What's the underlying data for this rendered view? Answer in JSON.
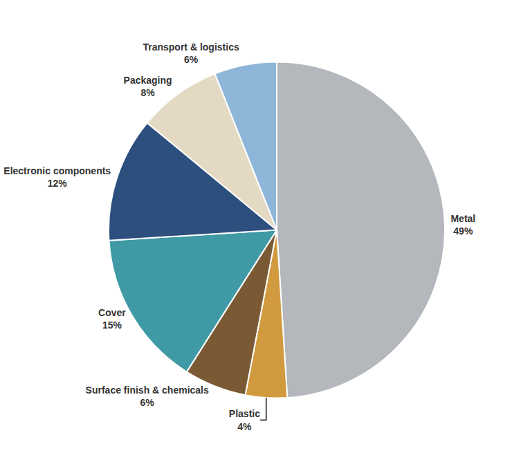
{
  "chart_data": {
    "type": "pie",
    "categories": [
      "Metal",
      "Plastic",
      "Surface finish & chemicals",
      "Cover",
      "Electronic components",
      "Packaging",
      "Transport & logistics"
    ],
    "values": [
      49,
      4,
      6,
      15,
      12,
      8,
      6
    ],
    "value_labels": [
      "49%",
      "4%",
      "6%",
      "15%",
      "12%",
      "8%",
      "6%"
    ],
    "colors": [
      "#b4b8bd",
      "#d19a3e",
      "#7a5a34",
      "#3f9aa6",
      "#2c4f7e",
      "#e4d9c3",
      "#8db6d8"
    ],
    "data_labels": true
  }
}
